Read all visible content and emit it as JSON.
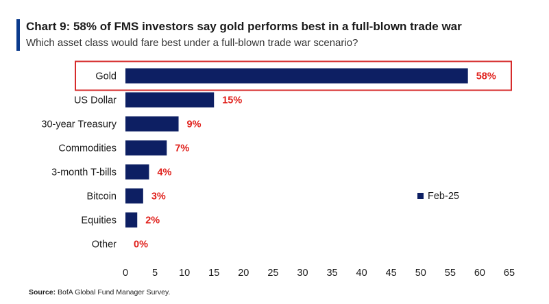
{
  "header": {
    "title": "Chart 9: 58% of FMS investors say gold performs best in a full-blown trade war",
    "subtitle": "Which asset class would fare best under a full-blown trade war scenario?"
  },
  "source": {
    "label": "Source:",
    "text": "BofA Global Fund Manager Survey."
  },
  "colors": {
    "bar": "#0d1f63",
    "value_label": "#e0201b",
    "highlight_box": "#d62b2b",
    "accent": "#0a3a8c"
  },
  "chart_data": {
    "type": "bar",
    "orientation": "horizontal",
    "categories": [
      "Gold",
      "US Dollar",
      "30-year Treasury",
      "Commodities",
      "3-month T-bills",
      "Bitcoin",
      "Equities",
      "Other"
    ],
    "series": [
      {
        "name": "Feb-25",
        "values": [
          58,
          15,
          9,
          7,
          4,
          3,
          2,
          0
        ]
      }
    ],
    "data_labels": [
      "58%",
      "15%",
      "9%",
      "7%",
      "4%",
      "3%",
      "2%",
      "0%"
    ],
    "xlim": [
      0,
      65
    ],
    "xticks": [
      0,
      5,
      10,
      15,
      20,
      25,
      30,
      35,
      40,
      45,
      50,
      55,
      60,
      65
    ],
    "grid": false,
    "legend": "right",
    "highlight_category": "Gold"
  }
}
